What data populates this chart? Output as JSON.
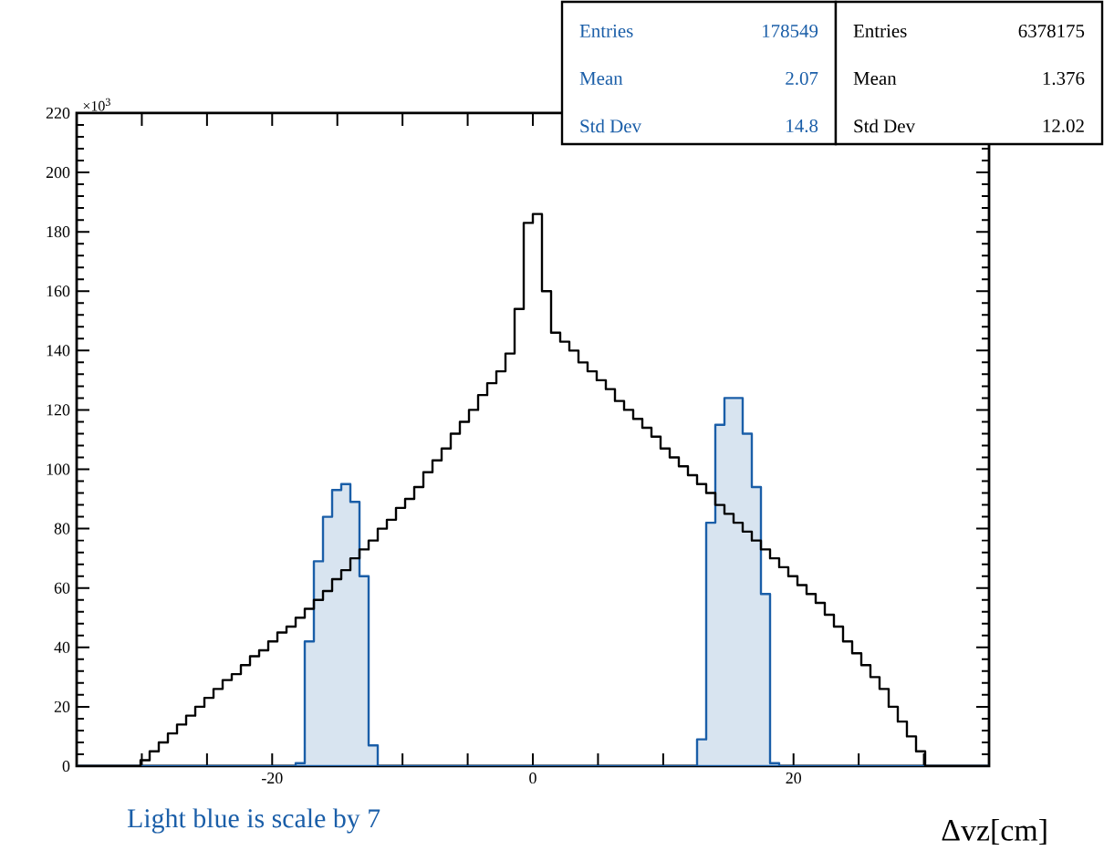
{
  "chart_data": {
    "type": "histogram",
    "xlabel": "Δvz[cm]",
    "bins": [
      -35,
      -34.3,
      -33.6,
      -32.9,
      -32.2,
      -31.5,
      -30.8,
      -30.1,
      -29.4,
      -28.7,
      -28,
      -27.3,
      -26.6,
      -25.9,
      -25.2,
      -24.5,
      -23.8,
      -23.1,
      -22.4,
      -21.7,
      -21,
      -20.3,
      -19.6,
      -18.9,
      -18.2,
      -17.5,
      -16.8,
      -16.1,
      -15.4,
      -14.7,
      -14,
      -13.3,
      -12.6,
      -11.9,
      -11.2,
      -10.5,
      -9.8,
      -9.1,
      -8.4,
      -7.7,
      -7,
      -6.3,
      -5.6,
      -4.9,
      -4.2,
      -3.5,
      -2.8,
      -2.1,
      -1.4,
      -0.7,
      0,
      0.7,
      1.4,
      2.1,
      2.8,
      3.5,
      4.2,
      4.9,
      5.6,
      6.3,
      7,
      7.7,
      8.4,
      9.1,
      9.8,
      10.5,
      11.2,
      11.9,
      12.6,
      13.3,
      14,
      14.7,
      15.4,
      16.1,
      16.8,
      17.5,
      18.2,
      18.9,
      19.6,
      20.3,
      21,
      21.7,
      22.4,
      23.1,
      23.8,
      24.5,
      25.2,
      25.9,
      26.6,
      27.3,
      28,
      28.7,
      29.4,
      30.1,
      30.8,
      31.5,
      32.2,
      32.9,
      33.6,
      34.3,
      35
    ],
    "series": [
      {
        "color": "#000000",
        "values": [
          0,
          0,
          0,
          0,
          0,
          0,
          0,
          2,
          5,
          8,
          11,
          14,
          17,
          20,
          23,
          26,
          29,
          31,
          34,
          37,
          39,
          42,
          45,
          47,
          50,
          53,
          56,
          59,
          63,
          66,
          70,
          73,
          76,
          80,
          83,
          87,
          90,
          94,
          99,
          103,
          107,
          112,
          116,
          120,
          125,
          129,
          133,
          139,
          154,
          183,
          186,
          160,
          146,
          143,
          140,
          136,
          133,
          130,
          127,
          123,
          120,
          117,
          114,
          111,
          107,
          104,
          101,
          98,
          95,
          92,
          88,
          85,
          82,
          79,
          76,
          73,
          70,
          67,
          64,
          61,
          58,
          55,
          51,
          47,
          42,
          38,
          34,
          30,
          26,
          20,
          15,
          10,
          5,
          0,
          0,
          0,
          0,
          0,
          0,
          0
        ]
      },
      {
        "color": "#d8e4f0",
        "values": [
          0,
          0,
          0,
          0,
          0,
          0,
          0,
          0,
          0,
          0,
          0,
          0,
          0,
          0,
          0,
          0,
          0,
          0,
          0,
          0,
          0,
          0,
          0,
          0,
          1,
          42,
          69,
          84,
          93,
          95,
          89,
          64,
          7,
          0,
          0,
          0,
          0,
          0,
          0,
          0,
          0,
          0,
          0,
          0,
          0,
          0,
          0,
          0,
          0,
          0,
          0,
          0,
          0,
          0,
          0,
          0,
          0,
          0,
          0,
          0,
          0,
          0,
          0,
          0,
          0,
          0,
          0,
          0,
          9,
          82,
          115,
          124,
          124,
          112,
          94,
          58,
          1,
          0,
          0,
          0,
          0,
          0,
          0,
          0,
          0,
          0,
          0,
          0,
          0,
          0,
          0,
          0,
          0,
          0,
          0,
          0,
          0,
          0,
          0,
          0
        ]
      }
    ],
    "xlim": [
      -35,
      35
    ],
    "ylim": [
      0,
      220
    ],
    "xticks": [
      {
        "value": -30,
        "label": null
      },
      {
        "value": -25,
        "label": null
      },
      -20,
      {
        "value": -15,
        "label": null
      },
      {
        "value": -10,
        "label": null
      },
      {
        "value": -5,
        "label": null
      },
      0,
      {
        "value": 5,
        "label": null
      },
      {
        "value": 10,
        "label": null
      },
      {
        "value": 15,
        "label": null
      },
      20,
      {
        "value": 25,
        "label": null
      },
      {
        "value": 30,
        "label": null
      }
    ],
    "yticks": [
      0,
      20,
      40,
      60,
      80,
      100,
      120,
      140,
      160,
      180,
      200,
      220
    ],
    "annotations": [
      "×10$^{3}$",
      "Light blue is scale by 7",
      "Entries",
      "178549",
      "Mean",
      "2.07",
      "Std Dev",
      "14.8",
      "Entries",
      "6378175",
      "Mean",
      "1.376",
      "Std Dev",
      "12.02"
    ]
  }
}
